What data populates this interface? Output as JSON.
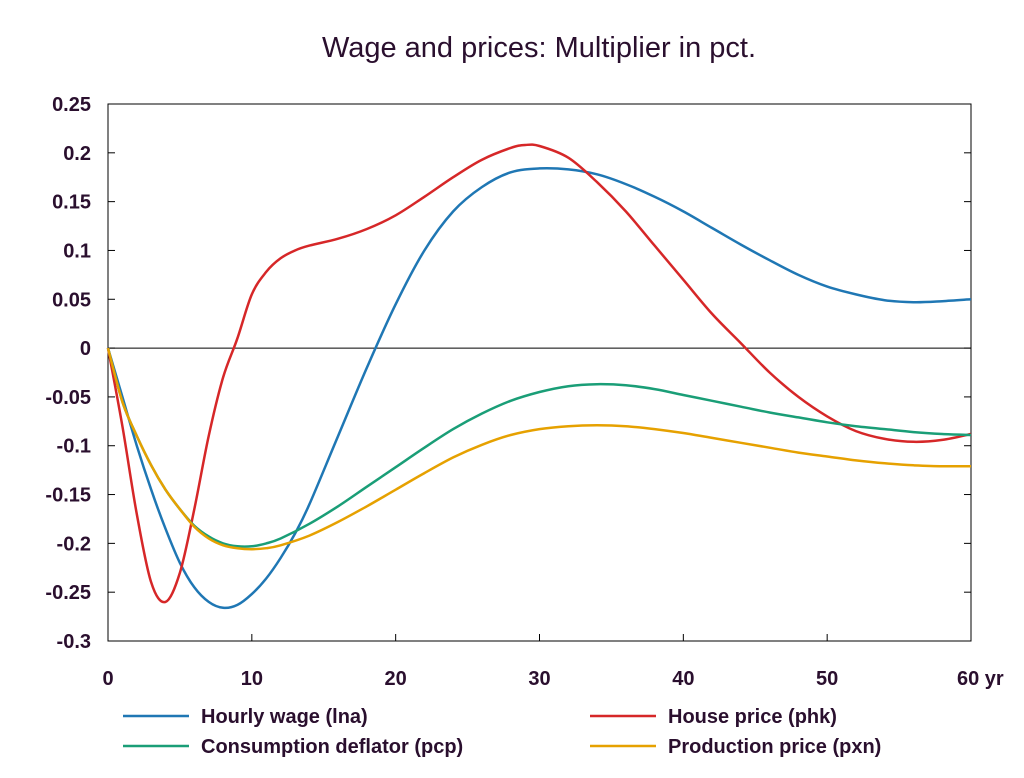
{
  "chart_data": {
    "type": "line",
    "title": "Wage and prices: Multiplier in pct.",
    "xlim": [
      0,
      60
    ],
    "ylim": [
      -0.3,
      0.25
    ],
    "x_ticks": [
      0,
      10,
      20,
      30,
      40,
      50,
      60
    ],
    "x_tick_labels": [
      "0",
      "10",
      "20",
      "30",
      "40",
      "50",
      "60 yr"
    ],
    "y_ticks": [
      0.25,
      0.2,
      0.15,
      0.1,
      0.05,
      0,
      -0.05,
      -0.1,
      -0.15,
      -0.2,
      -0.25,
      -0.3
    ],
    "y_tick_labels": [
      "0.25",
      "0.2",
      "0.15",
      "0.1",
      "0.05",
      "0",
      "-0.05",
      "-0.1",
      "-0.15",
      "-0.2",
      "-0.25",
      "-0.3"
    ],
    "zero_line": true,
    "grid": false,
    "legend_position": "bottom",
    "series": [
      {
        "name": "Hourly wage (lna)",
        "color": "#1f77b4",
        "x": [
          0,
          1,
          2,
          3,
          4,
          5,
          6,
          7,
          8,
          9,
          10,
          11,
          12,
          13,
          14,
          16,
          18,
          20,
          22,
          24,
          26,
          28,
          30,
          32,
          34,
          36,
          38,
          40,
          42,
          44,
          46,
          48,
          50,
          52,
          54,
          56,
          58,
          60
        ],
        "y": [
          0,
          -0.05,
          -0.1,
          -0.145,
          -0.185,
          -0.22,
          -0.245,
          -0.26,
          -0.266,
          -0.263,
          -0.252,
          -0.236,
          -0.215,
          -0.19,
          -0.16,
          -0.09,
          -0.02,
          0.045,
          0.1,
          0.14,
          0.165,
          0.18,
          0.184,
          0.183,
          0.178,
          0.168,
          0.155,
          0.14,
          0.123,
          0.106,
          0.09,
          0.075,
          0.063,
          0.055,
          0.049,
          0.047,
          0.048,
          0.05
        ]
      },
      {
        "name": "House price (phk)",
        "color": "#d62728",
        "x": [
          0,
          1,
          2,
          3,
          4,
          5,
          6,
          7,
          8,
          9,
          10,
          11,
          12,
          13,
          14,
          16,
          18,
          20,
          22,
          24,
          26,
          28,
          29,
          30,
          32,
          34,
          36,
          38,
          40,
          42,
          44,
          46,
          48,
          50,
          52,
          54,
          56,
          58,
          60
        ],
        "y": [
          0,
          -0.08,
          -0.17,
          -0.24,
          -0.26,
          -0.23,
          -0.165,
          -0.09,
          -0.03,
          0.01,
          0.055,
          0.078,
          0.092,
          0.1,
          0.105,
          0.112,
          0.122,
          0.136,
          0.155,
          0.175,
          0.193,
          0.205,
          0.208,
          0.207,
          0.195,
          0.17,
          0.14,
          0.105,
          0.07,
          0.035,
          0.005,
          -0.025,
          -0.05,
          -0.07,
          -0.085,
          -0.093,
          -0.096,
          -0.094,
          -0.088
        ]
      },
      {
        "name": "Consumption deflator (pcp)",
        "color": "#1a9e77",
        "x": [
          0,
          1,
          2,
          3,
          4,
          5,
          6,
          7,
          8,
          9,
          10,
          11,
          12,
          14,
          16,
          18,
          20,
          22,
          24,
          26,
          28,
          30,
          32,
          34,
          36,
          38,
          40,
          42,
          44,
          46,
          48,
          50,
          52,
          54,
          56,
          58,
          60
        ],
        "y": [
          0,
          -0.055,
          -0.09,
          -0.12,
          -0.145,
          -0.165,
          -0.182,
          -0.193,
          -0.2,
          -0.203,
          -0.203,
          -0.2,
          -0.195,
          -0.18,
          -0.162,
          -0.142,
          -0.122,
          -0.102,
          -0.083,
          -0.067,
          -0.054,
          -0.045,
          -0.039,
          -0.037,
          -0.038,
          -0.042,
          -0.048,
          -0.054,
          -0.06,
          -0.066,
          -0.071,
          -0.076,
          -0.08,
          -0.083,
          -0.086,
          -0.088,
          -0.089
        ]
      },
      {
        "name": "Production price (pxn)",
        "color": "#e6a100",
        "x": [
          0,
          1,
          2,
          3,
          4,
          5,
          6,
          7,
          8,
          9,
          10,
          11,
          12,
          14,
          16,
          18,
          20,
          22,
          24,
          26,
          28,
          30,
          32,
          34,
          36,
          38,
          40,
          42,
          44,
          46,
          48,
          50,
          52,
          54,
          56,
          58,
          60
        ],
        "y": [
          0,
          -0.055,
          -0.09,
          -0.12,
          -0.145,
          -0.165,
          -0.183,
          -0.195,
          -0.202,
          -0.205,
          -0.206,
          -0.205,
          -0.202,
          -0.192,
          -0.178,
          -0.162,
          -0.145,
          -0.128,
          -0.112,
          -0.099,
          -0.089,
          -0.083,
          -0.08,
          -0.079,
          -0.08,
          -0.083,
          -0.087,
          -0.092,
          -0.097,
          -0.102,
          -0.107,
          -0.111,
          -0.115,
          -0.118,
          -0.12,
          -0.121,
          -0.121
        ]
      }
    ]
  }
}
